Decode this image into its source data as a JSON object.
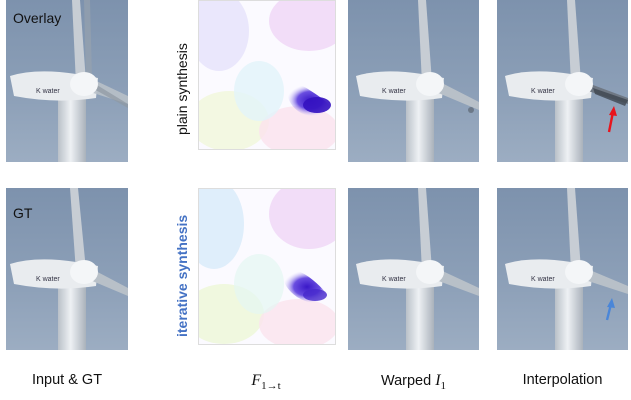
{
  "panels": {
    "overlay_tag": "Overlay",
    "gt_tag": "GT"
  },
  "row_labels": {
    "top": "plain synthesis",
    "bottom": "iterative synthesis",
    "top_color": "#111111",
    "bottom_color": "#4472c4"
  },
  "captions": {
    "col1": "Input & GT",
    "col2_symbol": "F",
    "col2_subscript": "1→t",
    "col3_text": "Warped ",
    "col3_symbol": "I",
    "col3_subscript": "1",
    "col4": "Interpolation"
  },
  "arrows": {
    "top_color": "#e8141c",
    "bottom_color": "#4a86d8",
    "top_icon": "red-arrow-icon",
    "bottom_icon": "blue-arrow-icon"
  },
  "turbine_text": "K water"
}
